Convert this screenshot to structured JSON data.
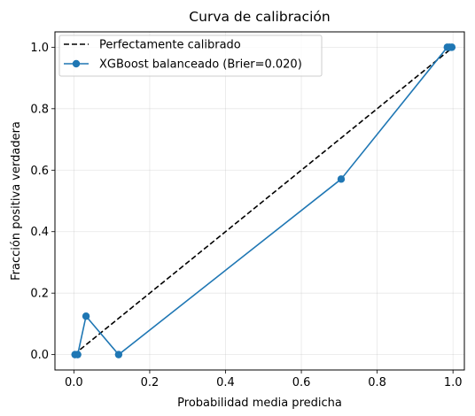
{
  "chart_data": {
    "type": "line",
    "title": "Curva de calibración",
    "xlabel": "Probabilidad media predicha",
    "ylabel": "Fracción positiva verdadera",
    "xlim": [
      -0.05,
      1.03
    ],
    "ylim": [
      -0.05,
      1.05
    ],
    "xticks": [
      0.0,
      0.2,
      0.4,
      0.6,
      0.8,
      1.0
    ],
    "xtick_labels": [
      "0.0",
      "0.2",
      "0.4",
      "0.6",
      "0.8",
      "1.0"
    ],
    "yticks": [
      0.0,
      0.2,
      0.4,
      0.6,
      0.8,
      1.0
    ],
    "ytick_labels": [
      "0.0",
      "0.2",
      "0.4",
      "0.6",
      "0.8",
      "1.0"
    ],
    "grid": true,
    "legend_position": "top-left",
    "series": [
      {
        "name": "Perfectamente calibrado",
        "style": "dashed",
        "color": "#000000",
        "x": [
          0,
          1
        ],
        "y": [
          0,
          1
        ]
      },
      {
        "name": "XGBoost balanceado (Brier=0.020)",
        "style": "solid-markers",
        "color": "#1f77b4",
        "x": [
          0.003,
          0.01,
          0.032,
          0.118,
          0.705,
          0.985,
          0.991,
          0.997
        ],
        "y": [
          0.0,
          0.0,
          0.125,
          0.0,
          0.571,
          1.0,
          1.0,
          1.0
        ]
      }
    ]
  }
}
